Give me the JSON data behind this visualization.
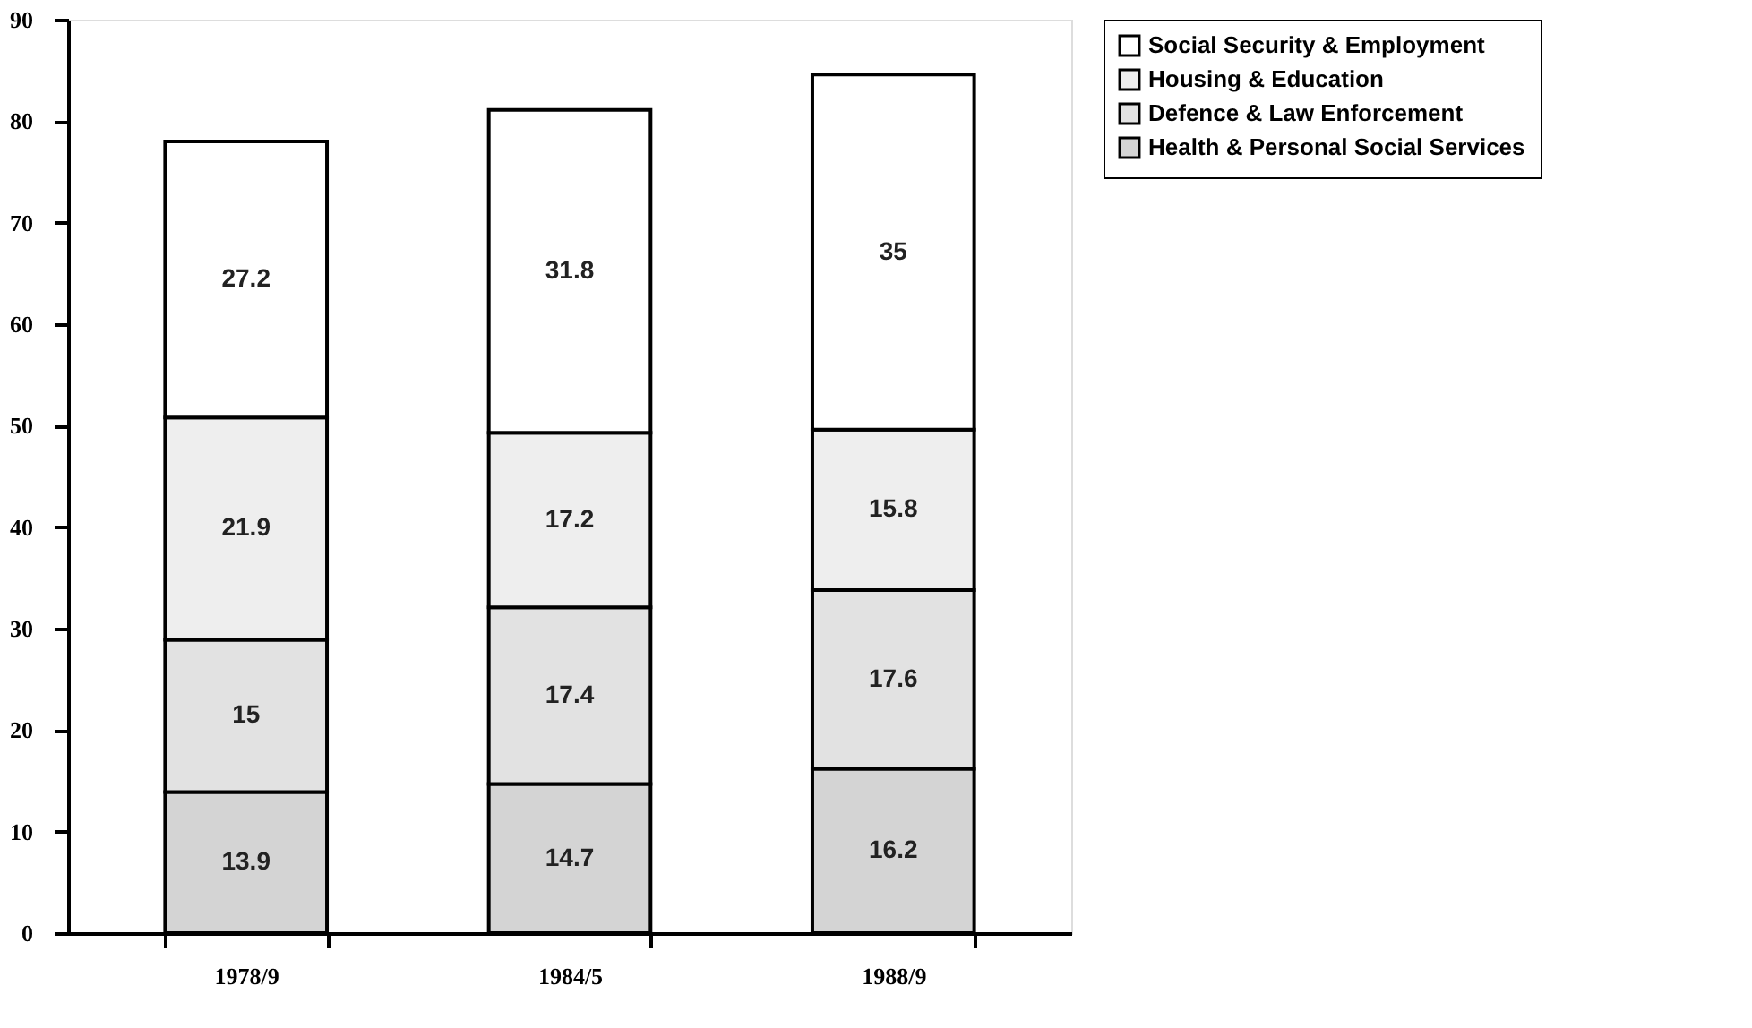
{
  "chart_data": {
    "type": "bar",
    "stacked": true,
    "categories": [
      "1978/9",
      "1984/5",
      "1988/9"
    ],
    "series": [
      {
        "name": "Health & Personal Social Services",
        "color": "#d4d4d4",
        "values": [
          13.9,
          14.7,
          16.2
        ]
      },
      {
        "name": "Defence & Law Enforcement",
        "color": "#e2e2e2",
        "values": [
          15,
          17.4,
          17.6
        ]
      },
      {
        "name": "Housing & Education",
        "color": "#eeeeee",
        "values": [
          21.9,
          17.2,
          15.8
        ]
      },
      {
        "name": "Social Security & Employment",
        "color": "#ffffff",
        "values": [
          27.2,
          31.8,
          35
        ]
      }
    ],
    "ylim": [
      0,
      90
    ],
    "yticks": [
      0,
      10,
      20,
      30,
      40,
      50,
      60,
      70,
      80,
      90
    ],
    "grid": false,
    "legend": "right",
    "data_labels": true
  }
}
